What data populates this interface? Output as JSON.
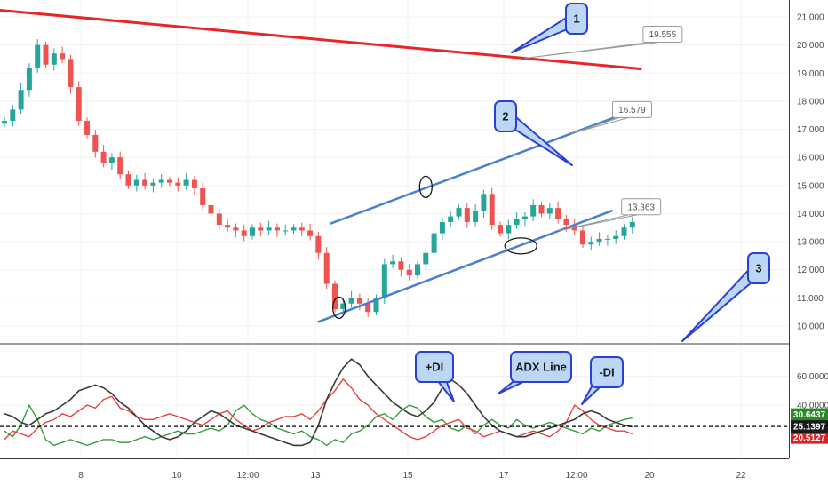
{
  "colors": {
    "bull": "#26a69a",
    "bear": "#ef5350",
    "red_trend": "#e8262a",
    "blue_trend": "#4a7fd0",
    "callout_fill": "#bcd7f5",
    "callout_stroke": "#2a3fd4",
    "plus_di": "#3a9a3a",
    "minus_di": "#e84040",
    "adx": "#3a3a3a",
    "badge_green": "#2a8a2a",
    "badge_black": "#1a1a1a",
    "badge_red": "#e02020",
    "grid": "#f1f1f1",
    "axis_text": "#4a4a4a"
  },
  "chart_data": [
    {
      "type": "candlestick",
      "x_tick_labels": [
        "8",
        "10",
        "12:00",
        "13",
        "15",
        "17",
        "12:00",
        "20",
        "22"
      ],
      "y_ticks": [
        10,
        11,
        12,
        13,
        14,
        15,
        16,
        17,
        18,
        19,
        20,
        21
      ],
      "y_tick_labels": [
        "10.000",
        "11.000",
        "12.000",
        "13.000",
        "14.000",
        "15.000",
        "16.000",
        "17.000",
        "18.000",
        "19.000",
        "20.000",
        "21.000"
      ],
      "ylim": [
        9.4,
        21.6
      ],
      "closes": [
        17.3,
        17.7,
        18.4,
        19.2,
        20.0,
        19.3,
        19.7,
        19.5,
        18.5,
        17.3,
        16.8,
        16.2,
        15.8,
        16.0,
        15.4,
        15.0,
        15.2,
        15.0,
        15.1,
        15.2,
        15.1,
        15.0,
        15.2,
        14.9,
        14.3,
        14.0,
        13.6,
        13.5,
        13.4,
        13.2,
        13.5,
        13.4,
        13.5,
        13.4,
        13.4,
        13.5,
        13.4,
        13.2,
        12.6,
        11.5,
        10.6,
        10.8,
        11.0,
        10.8,
        10.5,
        11.0,
        12.2,
        12.3,
        12.0,
        11.8,
        12.2,
        12.6,
        13.3,
        13.7,
        13.9,
        14.2,
        13.7,
        14.1,
        14.7,
        13.6,
        13.3,
        13.6,
        13.8,
        13.9,
        14.3,
        14.0,
        14.2,
        13.8,
        13.6,
        13.4,
        12.9,
        13.0,
        13.1,
        13.1,
        13.2,
        13.5,
        13.7
      ],
      "trendlines": [
        {
          "from": [
            -1,
            21.25
          ],
          "to": [
            77,
            19.15
          ],
          "label": "19.555"
        },
        {
          "from": [
            39.5,
            13.65
          ],
          "to": [
            75,
            17.55
          ],
          "label": "16.579"
        },
        {
          "from": [
            38,
            10.15
          ],
          "to": [
            73.5,
            14.1
          ],
          "label": "13.363"
        }
      ],
      "circled_points": [
        {
          "x": 40.5,
          "y": 10.65
        },
        {
          "x": 51,
          "y": 14.95
        },
        {
          "x": 62.5,
          "y": 12.85
        }
      ],
      "callouts": [
        "1",
        "2",
        "3"
      ]
    },
    {
      "type": "line",
      "y_ticks": [
        40,
        60
      ],
      "y_tick_labels": [
        "40.0000",
        "60.0000"
      ],
      "ylim": [
        3,
        82
      ],
      "reference_line": 25.1397,
      "series": [
        {
          "name": "+DI",
          "color": "#3a9a3a",
          "last_value": "30.6437",
          "values": [
            22,
            18,
            26,
            40,
            30,
            16,
            12,
            14,
            16,
            14,
            12,
            14,
            16,
            16,
            14,
            14,
            16,
            18,
            16,
            18,
            20,
            22,
            20,
            20,
            22,
            24,
            22,
            26,
            36,
            40,
            34,
            30,
            28,
            24,
            22,
            20,
            22,
            18,
            16,
            12,
            16,
            14,
            20,
            22,
            26,
            32,
            34,
            30,
            36,
            40,
            38,
            32,
            28,
            30,
            24,
            22,
            26,
            20,
            26,
            30,
            26,
            24,
            30,
            26,
            24,
            26,
            28,
            26,
            24,
            22,
            20,
            24,
            22,
            26,
            28,
            30,
            31
          ]
        },
        {
          "name": "-DI",
          "color": "#e84040",
          "last_value": "20.5127",
          "values": [
            16,
            22,
            20,
            18,
            24,
            28,
            30,
            34,
            32,
            36,
            40,
            38,
            44,
            46,
            38,
            36,
            32,
            30,
            30,
            32,
            34,
            32,
            30,
            28,
            26,
            30,
            34,
            36,
            30,
            26,
            22,
            24,
            28,
            30,
            32,
            32,
            34,
            30,
            36,
            44,
            50,
            58,
            52,
            44,
            40,
            34,
            30,
            26,
            22,
            18,
            16,
            18,
            22,
            26,
            28,
            30,
            24,
            22,
            18,
            20,
            22,
            20,
            18,
            20,
            22,
            20,
            18,
            22,
            28,
            40,
            36,
            30,
            26,
            24,
            22,
            22,
            20
          ]
        },
        {
          "name": "ADX Line",
          "color": "#3a3a3a",
          "last_value": "25.1397",
          "values": [
            34,
            32,
            28,
            26,
            30,
            34,
            36,
            40,
            44,
            50,
            52,
            54,
            52,
            48,
            42,
            38,
            32,
            26,
            22,
            18,
            16,
            18,
            22,
            28,
            32,
            36,
            34,
            30,
            26,
            24,
            22,
            20,
            18,
            16,
            14,
            12,
            12,
            14,
            26,
            44,
            56,
            66,
            72,
            68,
            60,
            54,
            48,
            42,
            38,
            34,
            32,
            36,
            42,
            52,
            58,
            54,
            48,
            40,
            32,
            26,
            22,
            20,
            18,
            18,
            20,
            22,
            24,
            26,
            28,
            30,
            34,
            36,
            34,
            30,
            28,
            26,
            25
          ]
        }
      ],
      "callouts": [
        "+DI",
        "ADX Line",
        "-DI"
      ]
    }
  ]
}
